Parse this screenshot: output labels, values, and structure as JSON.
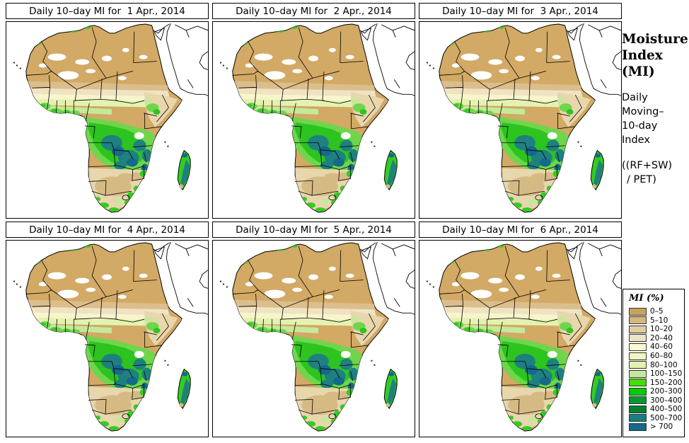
{
  "figure": {
    "background": "#FFFFFF"
  },
  "panels": [
    {
      "title": "Daily 10–day MI for  1 Apr., 2014"
    },
    {
      "title": "Daily 10–day MI for  2 Apr., 2014"
    },
    {
      "title": "Daily 10–day MI for  3 Apr., 2014"
    },
    {
      "title": "Daily 10–day MI for  4 Apr., 2014"
    },
    {
      "title": "Daily 10–day MI for  5 Apr., 2014"
    },
    {
      "title": "Daily 10–day MI for  6 Apr., 2014"
    }
  ],
  "sidebar": {
    "title_lines": [
      "Moisture",
      "Index",
      "(MI)"
    ],
    "subtitle_lines": [
      "Daily",
      "Moving–",
      "10-day",
      "Index"
    ],
    "formula_lines": [
      "((RF+SW)",
      "/ PET)"
    ]
  },
  "legend": {
    "title": "MI (%)",
    "entries": [
      {
        "label": "0–5",
        "color": "#C8A360"
      },
      {
        "label": "5–10",
        "color": "#D4B77E"
      },
      {
        "label": "10–20",
        "color": "#E2CDA1"
      },
      {
        "label": "20–40",
        "color": "#EFE3C4"
      },
      {
        "label": "40–60",
        "color": "#FAFAD2"
      },
      {
        "label": "60–80",
        "color": "#EFF7BE"
      },
      {
        "label": "80–100",
        "color": "#DFF2AE"
      },
      {
        "label": "100–150",
        "color": "#C5E99B"
      },
      {
        "label": "150–200",
        "color": "#44DD00"
      },
      {
        "label": "200–300",
        "color": "#00CC00"
      },
      {
        "label": "300–400",
        "color": "#009933"
      },
      {
        "label": "400–500",
        "color": "#008030"
      },
      {
        "label": "500–700",
        "color": "#157F82"
      },
      {
        "label": "> 700",
        "color": "#14698B"
      }
    ]
  },
  "map_colors": {
    "ocean": "#FFFFFF",
    "sahara_tan": "#D2A965",
    "band_tan": "#DCBE8C",
    "band_cream": "#EFE3C4",
    "band_pale_yellow": "#F7F5CC",
    "band_pale_green": "#E4F2B0",
    "light_green": "#C5E99B",
    "mid_green": "#6FD64C",
    "bright_green": "#2DC41F",
    "accent_green": "#33CC22",
    "teal": "#1F8080",
    "blue_teal": "#15698B",
    "cream": "#E8D6AC",
    "kalahari_tan": "#D6BA84",
    "border_black": "#000000"
  }
}
